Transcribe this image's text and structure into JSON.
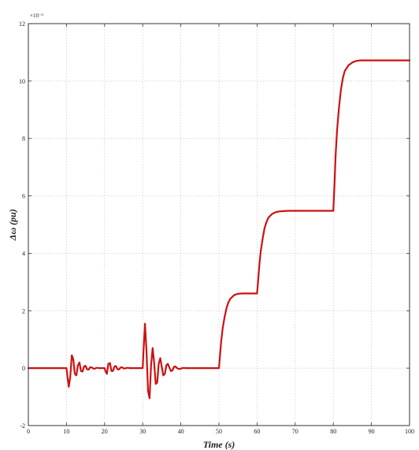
{
  "chart_data": {
    "type": "line",
    "title": "",
    "xlabel": "Time (s)",
    "ylabel": "Δω (pu)",
    "y_multiplier_label": "×10⁻³",
    "xlim": [
      0,
      100
    ],
    "ylim": [
      -2,
      12
    ],
    "x_ticks": [
      0,
      10,
      20,
      30,
      40,
      50,
      60,
      70,
      80,
      90,
      100
    ],
    "y_ticks": [
      -2,
      0,
      2,
      4,
      6,
      8,
      10,
      12
    ],
    "x_tick_labels": [
      "0",
      "10",
      "20",
      "30",
      "40",
      "50",
      "60",
      "70",
      "80",
      "90",
      "100"
    ],
    "y_tick_labels": [
      "-2",
      "0",
      "2",
      "4",
      "6",
      "8",
      "10",
      "12"
    ],
    "grid": true,
    "legend": "none",
    "series": [
      {
        "color": "#cc1111",
        "x": [
          0,
          10,
          10.3,
          10.6,
          11.0,
          11.4,
          11.8,
          12.2,
          12.6,
          13.0,
          13.4,
          13.8,
          14.2,
          14.6,
          15.0,
          15.4,
          15.8,
          16.2,
          16.6,
          17.0,
          17.4,
          17.8,
          18.2,
          18.6,
          19.0,
          19.4,
          19.8,
          20.0,
          20.2,
          20.6,
          21.0,
          21.4,
          21.8,
          22.2,
          22.6,
          23.0,
          23.4,
          23.8,
          24.2,
          24.6,
          25.0,
          25.4,
          25.8,
          26.2,
          26.6,
          27.0,
          27.4,
          27.8,
          28.2,
          28.6,
          29.0,
          29.4,
          29.8,
          30.0,
          30.2,
          30.6,
          31.0,
          31.4,
          31.8,
          32.2,
          32.6,
          33.0,
          33.4,
          33.8,
          34.2,
          34.6,
          35.0,
          35.4,
          35.8,
          36.2,
          36.6,
          37.0,
          37.4,
          37.8,
          38.2,
          38.6,
          39.0,
          39.4,
          39.8,
          40.5,
          41.5,
          43,
          45,
          47,
          49,
          50,
          50.3,
          50.6,
          51,
          51.5,
          52,
          52.5,
          53,
          54,
          55,
          56,
          57,
          58,
          59,
          60,
          60.3,
          60.6,
          61,
          61.5,
          62,
          62.5,
          63,
          64,
          65,
          66,
          67,
          68,
          70,
          72,
          74,
          76,
          78,
          80,
          80.3,
          80.6,
          81,
          81.5,
          82,
          82.5,
          83,
          84,
          85,
          86,
          87,
          88,
          90,
          92,
          94,
          96,
          98,
          100
        ],
        "y": [
          0,
          0,
          -0.35,
          -0.65,
          -0.3,
          0.45,
          0.3,
          -0.2,
          -0.25,
          0.1,
          0.2,
          -0.1,
          -0.12,
          0.06,
          0.08,
          -0.04,
          -0.05,
          0.03,
          0.03,
          -0.01,
          -0.02,
          0.01,
          0.01,
          0,
          0,
          0,
          0,
          0,
          -0.1,
          -0.2,
          0.15,
          0.18,
          -0.1,
          -0.1,
          0.06,
          0.07,
          -0.04,
          -0.04,
          0.02,
          0.03,
          -0.01,
          -0.01,
          0.01,
          0.01,
          0,
          0,
          0,
          0,
          0,
          0,
          0,
          0,
          0,
          0,
          0.6,
          1.55,
          0.6,
          -0.8,
          -1.05,
          0.1,
          0.7,
          0.2,
          -0.55,
          -0.5,
          0.15,
          0.35,
          0.05,
          -0.25,
          -0.2,
          0.1,
          0.15,
          0.02,
          -0.1,
          -0.08,
          0.05,
          0.06,
          0,
          -0.03,
          -0.03,
          0.01,
          0,
          0,
          0,
          0,
          0,
          0,
          0.5,
          0.95,
          1.4,
          1.8,
          2.1,
          2.3,
          2.42,
          2.55,
          2.59,
          2.6,
          2.6,
          2.6,
          2.6,
          2.6,
          3.1,
          3.6,
          4.1,
          4.55,
          4.9,
          5.1,
          5.25,
          5.38,
          5.44,
          5.46,
          5.47,
          5.48,
          5.48,
          5.48,
          5.48,
          5.48,
          5.48,
          5.48,
          6.4,
          7.4,
          8.3,
          9.1,
          9.7,
          10.1,
          10.35,
          10.55,
          10.65,
          10.7,
          10.72,
          10.72,
          10.72,
          10.72,
          10.72,
          10.72,
          10.72,
          10.72
        ]
      }
    ]
  }
}
